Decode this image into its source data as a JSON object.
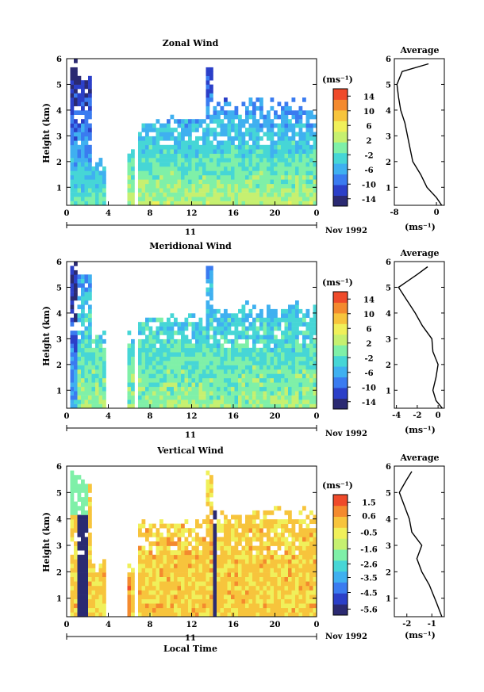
{
  "chart_data": [
    {
      "type": "heatmap",
      "title": "Zonal Wind",
      "xlabel": "",
      "ylabel": "Height (km)",
      "xlim": [
        0,
        24
      ],
      "ylim": [
        0.3,
        6
      ],
      "xticks": [
        "0",
        "4",
        "8",
        "12",
        "16",
        "20",
        "0"
      ],
      "yticks": [
        "1",
        "2",
        "3",
        "4",
        "5",
        "6"
      ],
      "day_label": "11",
      "date_label": "Nov 1992",
      "colorbar": {
        "unit": "(ms⁻¹)",
        "min": -16,
        "max": 16,
        "ticks": [
          "14",
          "10",
          "6",
          "2",
          "-2",
          "-6",
          "-10",
          "-14"
        ]
      },
      "average": {
        "title": "Average",
        "xticks": [
          "-8",
          "0"
        ],
        "xunit": "(ms⁻¹)",
        "xlim": [
          -8,
          1.5
        ],
        "heights": [
          0.3,
          0.6,
          1.0,
          1.5,
          2.0,
          2.5,
          3.0,
          3.5,
          4.0,
          4.5,
          5.0,
          5.5,
          5.8
        ],
        "values": [
          1.0,
          0.0,
          -1.8,
          -3.0,
          -4.5,
          -5.0,
          -5.5,
          -6.0,
          -6.8,
          -7.2,
          -7.5,
          -6.5,
          -1.5
        ]
      },
      "active_x_ranges": [
        [
          0.2,
          3.9
        ],
        [
          5.8,
          6.6
        ],
        [
          7.0,
          24
        ]
      ],
      "top_heights": [
        [
          0.2,
          1.0,
          5.8
        ],
        [
          1.0,
          2.5,
          5.5
        ],
        [
          2.5,
          3.9,
          2.0
        ],
        [
          5.8,
          6.6,
          2.5
        ],
        [
          7.0,
          13.3,
          3.5
        ],
        [
          13.3,
          13.9,
          5.8
        ],
        [
          13.9,
          24,
          4.2
        ]
      ]
    },
    {
      "type": "heatmap",
      "title": "Meridional Wind",
      "xlabel": "",
      "ylabel": "Height (km)",
      "xlim": [
        0,
        24
      ],
      "ylim": [
        0.3,
        6
      ],
      "xticks": [
        "0",
        "4",
        "8",
        "12",
        "16",
        "20",
        "0"
      ],
      "yticks": [
        "1",
        "2",
        "3",
        "4",
        "5",
        "6"
      ],
      "day_label": "11",
      "date_label": "Nov 1992",
      "colorbar": {
        "unit": "(ms⁻¹)",
        "min": -16,
        "max": 16,
        "ticks": [
          "14",
          "10",
          "6",
          "2",
          "-2",
          "-6",
          "-10",
          "-14"
        ]
      },
      "average": {
        "title": "Average",
        "xticks": [
          "-4",
          "-2",
          "0"
        ],
        "xunit": "(ms⁻¹)",
        "xlim": [
          -4.2,
          0.6
        ],
        "heights": [
          0.3,
          0.6,
          1.0,
          1.5,
          2.0,
          2.5,
          3.0,
          3.5,
          4.0,
          4.5,
          5.0,
          5.5,
          5.8
        ],
        "values": [
          0.4,
          -0.2,
          -0.5,
          -0.2,
          0.0,
          -0.5,
          -0.6,
          -1.5,
          -2.2,
          -3.0,
          -3.8,
          -2.0,
          -1.0
        ]
      },
      "active_x_ranges": [
        [
          0.2,
          3.9
        ],
        [
          5.8,
          6.6
        ],
        [
          7.0,
          24
        ]
      ],
      "top_heights": [
        [
          0.2,
          1.0,
          5.8
        ],
        [
          1.0,
          2.5,
          5.5
        ],
        [
          2.5,
          3.9,
          3.0
        ],
        [
          5.8,
          6.6,
          3.0
        ],
        [
          7.0,
          13.3,
          3.8
        ],
        [
          13.3,
          13.9,
          5.8
        ],
        [
          13.9,
          24,
          4.2
        ]
      ]
    },
    {
      "type": "heatmap",
      "title": "Vertical Wind",
      "xlabel": "Local Time",
      "ylabel": "Height (km)",
      "xlim": [
        0,
        24
      ],
      "ylim": [
        0.3,
        6
      ],
      "xticks": [
        "0",
        "4",
        "8",
        "12",
        "16",
        "20",
        "0"
      ],
      "yticks": [
        "1",
        "2",
        "3",
        "4",
        "5",
        "6"
      ],
      "day_label": "11",
      "date_label": "Nov 1992",
      "colorbar": {
        "unit": "(ms⁻¹)",
        "min": -6,
        "max": 2,
        "ticks": [
          "1.5",
          "0.6",
          "-0.5",
          "-1.6",
          "-2.6",
          "-3.5",
          "-4.5",
          "-5.6"
        ]
      },
      "average": {
        "title": "Average",
        "xticks": [
          "-2",
          "-1"
        ],
        "xunit": "(ms⁻¹)",
        "xlim": [
          -2.5,
          -0.5
        ],
        "heights": [
          0.3,
          0.8,
          1.5,
          2.0,
          2.5,
          3.0,
          3.5,
          4.0,
          4.5,
          5.0,
          5.5,
          5.8
        ],
        "values": [
          -0.6,
          -0.8,
          -1.1,
          -1.4,
          -1.6,
          -1.4,
          -1.8,
          -1.9,
          -2.1,
          -2.3,
          -2.0,
          -1.8
        ]
      },
      "active_x_ranges": [
        [
          0.2,
          3.9
        ],
        [
          5.8,
          6.6
        ],
        [
          7.0,
          24
        ]
      ],
      "top_heights": [
        [
          0.2,
          1.0,
          5.8
        ],
        [
          1.0,
          2.5,
          5.5
        ],
        [
          2.5,
          3.9,
          2.2
        ],
        [
          5.8,
          6.6,
          2.2
        ],
        [
          7.0,
          13.3,
          3.8
        ],
        [
          13.3,
          13.9,
          5.8
        ],
        [
          13.9,
          24,
          4.2
        ]
      ]
    }
  ],
  "colors": {
    "colormap": [
      "#2b2a72",
      "#2b3fc8",
      "#3a7bf0",
      "#3fb0f0",
      "#46d6d6",
      "#7ff0a8",
      "#c6f070",
      "#f0f05a",
      "#f7c43c",
      "#f48a2e",
      "#ef4a2a"
    ]
  }
}
